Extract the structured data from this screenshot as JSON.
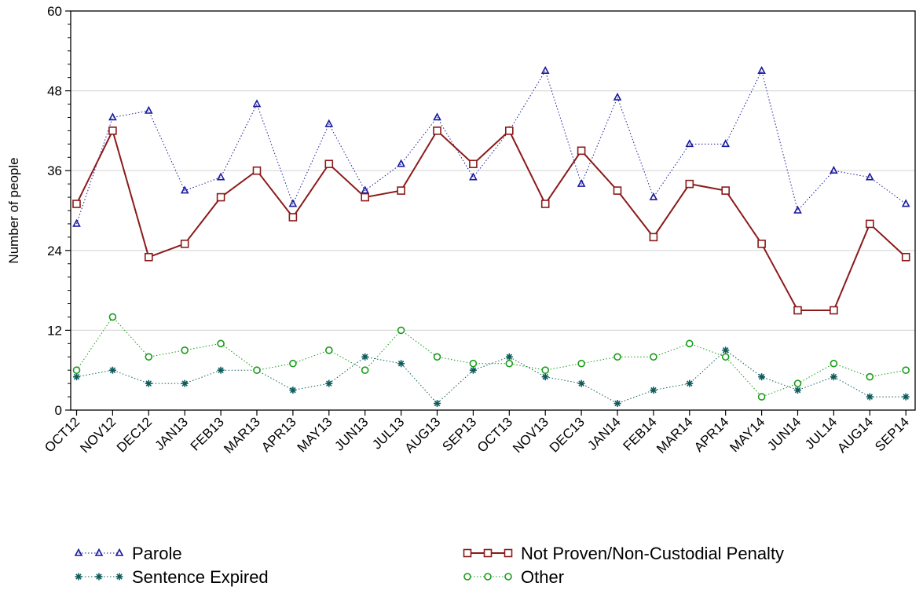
{
  "chart_data": {
    "type": "line",
    "title": "",
    "xlabel": "",
    "ylabel": "Number of people",
    "ylim": [
      0,
      60
    ],
    "yticks": [
      "0",
      "12",
      "24",
      "36",
      "48",
      "60"
    ],
    "grid": "horizontal",
    "legend_position": "bottom",
    "categories": [
      "OCT12",
      "NOV12",
      "DEC12",
      "JAN13",
      "FEB13",
      "MAR13",
      "APR13",
      "MAY13",
      "JUN13",
      "JUL13",
      "AUG13",
      "SEP13",
      "OCT13",
      "NOV13",
      "DEC13",
      "JAN14",
      "FEB14",
      "MAR14",
      "APR14",
      "MAY14",
      "JUN14",
      "JUL14",
      "AUG14",
      "SEP14"
    ],
    "series": [
      {
        "name": "Parole",
        "color": "#1a1a9e",
        "marker": "triangle",
        "line": "dotted",
        "values": [
          28,
          44,
          45,
          33,
          35,
          46,
          31,
          43,
          33,
          37,
          44,
          35,
          42,
          51,
          34,
          47,
          32,
          40,
          40,
          51,
          30,
          36,
          35,
          31
        ]
      },
      {
        "name": "Not Proven/Non-Custodial Penalty",
        "color": "#8b1a1a",
        "marker": "square",
        "line": "solid",
        "values": [
          31,
          42,
          23,
          25,
          32,
          36,
          29,
          37,
          32,
          33,
          42,
          37,
          42,
          31,
          39,
          33,
          26,
          34,
          33,
          25,
          15,
          15,
          28,
          23
        ]
      },
      {
        "name": "Sentence Expired",
        "color": "#0d5c5c",
        "marker": "star",
        "line": "dotted",
        "values": [
          5,
          6,
          4,
          4,
          6,
          6,
          3,
          4,
          8,
          7,
          1,
          6,
          8,
          5,
          4,
          1,
          3,
          4,
          9,
          5,
          3,
          5,
          2,
          2
        ]
      },
      {
        "name": "Other",
        "color": "#199b19",
        "marker": "circle",
        "line": "dotted",
        "values": [
          6,
          14,
          8,
          9,
          10,
          6,
          7,
          9,
          6,
          12,
          8,
          7,
          7,
          6,
          7,
          8,
          8,
          10,
          8,
          2,
          4,
          7,
          5,
          6
        ]
      }
    ]
  }
}
